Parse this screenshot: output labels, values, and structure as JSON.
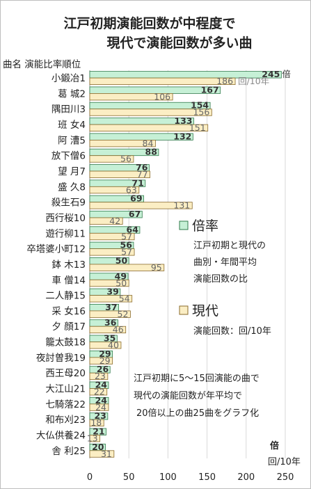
{
  "chart_data": {
    "type": "bar",
    "title_lines": [
      "江戸初期演能回数が中程度で",
      "現代で演能回数が多い曲"
    ],
    "header": "曲名 演能比率順位",
    "categories": [
      "小鍛冶1",
      "葛 城2",
      "隅田川3",
      "班 女4",
      "阿 漕5",
      "放下僧6",
      "望 月7",
      "盛 久8",
      "殺生石9",
      "西行桜10",
      "遊行柳11",
      "卒塔婆小町12",
      "鉢 木13",
      "車 僧14",
      "二人静15",
      "采 女16",
      "夕 顔17",
      "籠太鼓18",
      "夜討曽我19",
      "西王母20",
      "大江山21",
      "七騎落22",
      "和布刈23",
      "大仏供養24",
      "舎 利25"
    ],
    "series": [
      {
        "name": "倍率",
        "color": "#c6f0d6",
        "border": "#2f7a4a",
        "values": [
          245,
          167,
          154,
          133,
          132,
          88,
          76,
          71,
          69,
          67,
          64,
          56,
          50,
          49,
          39,
          37,
          36,
          35,
          29,
          26,
          24,
          24,
          23,
          21,
          20
        ]
      },
      {
        "name": "現代",
        "color": "#fbeec4",
        "border": "#8a6a2a",
        "values": [
          186,
          106,
          156,
          151,
          84,
          56,
          77,
          63,
          131,
          42,
          57,
          57,
          95,
          50,
          54,
          52,
          46,
          40,
          29,
          23,
          22,
          24,
          18,
          13,
          31
        ]
      }
    ],
    "value_label_first": "245",
    "value_label_first_unit": "倍",
    "value_label_second_first_unit": "回/10年",
    "xlim": [
      0,
      250
    ],
    "x_ticks": [
      "0",
      "50",
      "100",
      "150",
      "200",
      "250"
    ],
    "axis_unit_1": "倍",
    "axis_unit_2": "回/10年",
    "grid": true,
    "legend": [
      {
        "name": "倍率",
        "desc": [
          "江戸初期と現代の",
          "曲別・年間平均",
          "演能回数の比"
        ]
      },
      {
        "name": "現代",
        "desc": [
          "演能回数：回/10年"
        ]
      }
    ],
    "note": [
      "江戸初期に5〜15回演能の曲で",
      "現代の演能回数が年平均で",
      "20倍以上の曲25曲をグラフ化"
    ]
  }
}
